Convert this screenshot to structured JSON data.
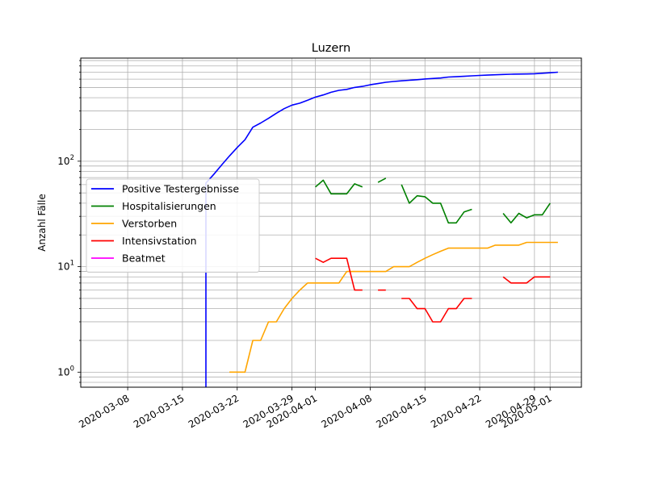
{
  "chart_data": {
    "type": "line",
    "title": "Luzern",
    "xlabel": "",
    "ylabel": "Anzahl Fälle",
    "yscale": "log",
    "ylim": [
      0.72,
      950
    ],
    "xlim": [
      "2020-03-02",
      "2020-05-05"
    ],
    "grid": true,
    "legend_position": "center-left",
    "x_tick_labels": [
      "2020-03-08",
      "2020-03-15",
      "2020-03-22",
      "2020-03-29",
      "2020-04-01",
      "2020-04-08",
      "2020-04-15",
      "2020-04-22",
      "2020-04-29",
      "2020-05-01"
    ],
    "y_tick_labels": [
      {
        "value": 1,
        "label": "10",
        "exp": "0"
      },
      {
        "value": 10,
        "label": "10",
        "exp": "1"
      },
      {
        "value": 100,
        "label": "10",
        "exp": "2"
      }
    ],
    "series": [
      {
        "name": "Positive Testergebnisse",
        "color": "#0000ff",
        "vertical_drop_to_bottom": "2020-03-18",
        "points": [
          [
            "2020-03-18",
            62
          ],
          [
            "2020-03-19",
            75
          ],
          [
            "2020-03-20",
            92
          ],
          [
            "2020-03-21",
            112
          ],
          [
            "2020-03-22",
            135
          ],
          [
            "2020-03-23",
            160
          ],
          [
            "2020-03-24",
            210
          ],
          [
            "2020-03-25",
            230
          ],
          [
            "2020-03-26",
            255
          ],
          [
            "2020-03-27",
            285
          ],
          [
            "2020-03-28",
            315
          ],
          [
            "2020-03-29",
            340
          ],
          [
            "2020-03-30",
            355
          ],
          [
            "2020-03-31",
            378
          ],
          [
            "2020-04-01",
            405
          ],
          [
            "2020-04-02",
            425
          ],
          [
            "2020-04-03",
            450
          ],
          [
            "2020-04-04",
            470
          ],
          [
            "2020-04-05",
            480
          ],
          [
            "2020-04-06",
            500
          ],
          [
            "2020-04-07",
            512
          ],
          [
            "2020-04-08",
            530
          ],
          [
            "2020-04-09",
            545
          ],
          [
            "2020-04-10",
            560
          ],
          [
            "2020-04-11",
            570
          ],
          [
            "2020-04-12",
            578
          ],
          [
            "2020-04-13",
            585
          ],
          [
            "2020-04-14",
            593
          ],
          [
            "2020-04-15",
            602
          ],
          [
            "2020-04-16",
            608
          ],
          [
            "2020-04-17",
            615
          ],
          [
            "2020-04-18",
            628
          ],
          [
            "2020-04-19",
            632
          ],
          [
            "2020-04-20",
            638
          ],
          [
            "2020-04-21",
            645
          ],
          [
            "2020-04-22",
            650
          ],
          [
            "2020-04-23",
            655
          ],
          [
            "2020-04-24",
            660
          ],
          [
            "2020-04-25",
            665
          ],
          [
            "2020-04-26",
            668
          ],
          [
            "2020-04-27",
            670
          ],
          [
            "2020-04-28",
            672
          ],
          [
            "2020-04-29",
            675
          ],
          [
            "2020-04-30",
            682
          ],
          [
            "2020-05-01",
            690
          ],
          [
            "2020-05-02",
            698
          ]
        ]
      },
      {
        "name": "Hospitalisierungen",
        "color": "#008000",
        "segments": [
          [
            [
              "2020-04-01",
              57
            ],
            [
              "2020-04-02",
              66
            ],
            [
              "2020-04-03",
              49
            ],
            [
              "2020-04-04",
              49
            ],
            [
              "2020-04-05",
              49
            ],
            [
              "2020-04-06",
              61
            ],
            [
              "2020-04-07",
              57
            ]
          ],
          [
            [
              "2020-04-09",
              63
            ],
            [
              "2020-04-10",
              69
            ]
          ],
          [
            [
              "2020-04-12",
              60
            ],
            [
              "2020-04-13",
              40
            ],
            [
              "2020-04-14",
              47
            ],
            [
              "2020-04-15",
              46
            ],
            [
              "2020-04-16",
              40
            ],
            [
              "2020-04-17",
              40
            ],
            [
              "2020-04-18",
              26
            ],
            [
              "2020-04-19",
              26
            ],
            [
              "2020-04-20",
              33
            ],
            [
              "2020-04-21",
              35
            ]
          ],
          [
            [
              "2020-04-25",
              32
            ],
            [
              "2020-04-26",
              26
            ],
            [
              "2020-04-27",
              32
            ],
            [
              "2020-04-28",
              29
            ],
            [
              "2020-04-29",
              31
            ],
            [
              "2020-04-30",
              31
            ],
            [
              "2020-05-01",
              40
            ]
          ]
        ]
      },
      {
        "name": "Verstorben",
        "color": "#ffa500",
        "segments": [
          [
            [
              "2020-03-21",
              1
            ],
            [
              "2020-03-22",
              1
            ],
            [
              "2020-03-23",
              1
            ],
            [
              "2020-03-24",
              2
            ],
            [
              "2020-03-25",
              2
            ],
            [
              "2020-03-26",
              3
            ],
            [
              "2020-03-27",
              3
            ],
            [
              "2020-03-28",
              4
            ],
            [
              "2020-03-29",
              5
            ],
            [
              "2020-03-30",
              6
            ],
            [
              "2020-03-31",
              7
            ],
            [
              "2020-04-01",
              7
            ],
            [
              "2020-04-02",
              7
            ],
            [
              "2020-04-03",
              7
            ],
            [
              "2020-04-04",
              7
            ],
            [
              "2020-04-05",
              9
            ],
            [
              "2020-04-06",
              9
            ],
            [
              "2020-04-07",
              9
            ],
            [
              "2020-04-08",
              9
            ],
            [
              "2020-04-09",
              9
            ],
            [
              "2020-04-10",
              9
            ],
            [
              "2020-04-11",
              10
            ],
            [
              "2020-04-12",
              10
            ],
            [
              "2020-04-13",
              10
            ],
            [
              "2020-04-14",
              11
            ],
            [
              "2020-04-15",
              12
            ],
            [
              "2020-04-16",
              13
            ],
            [
              "2020-04-17",
              14
            ],
            [
              "2020-04-18",
              15
            ],
            [
              "2020-04-19",
              15
            ],
            [
              "2020-04-20",
              15
            ],
            [
              "2020-04-21",
              15
            ],
            [
              "2020-04-22",
              15
            ],
            [
              "2020-04-23",
              15
            ],
            [
              "2020-04-24",
              16
            ],
            [
              "2020-04-25",
              16
            ],
            [
              "2020-04-26",
              16
            ],
            [
              "2020-04-27",
              16
            ],
            [
              "2020-04-28",
              17
            ],
            [
              "2020-04-29",
              17
            ],
            [
              "2020-04-30",
              17
            ],
            [
              "2020-05-01",
              17
            ],
            [
              "2020-05-02",
              17
            ]
          ]
        ]
      },
      {
        "name": "Intensivstation",
        "color": "#ff0000",
        "segments": [
          [
            [
              "2020-04-01",
              12
            ],
            [
              "2020-04-02",
              11
            ],
            [
              "2020-04-03",
              12
            ],
            [
              "2020-04-04",
              12
            ],
            [
              "2020-04-05",
              12
            ],
            [
              "2020-04-06",
              6
            ],
            [
              "2020-04-07",
              6
            ]
          ],
          [
            [
              "2020-04-09",
              6
            ],
            [
              "2020-04-10",
              6
            ]
          ],
          [
            [
              "2020-04-12",
              5
            ],
            [
              "2020-04-13",
              5
            ],
            [
              "2020-04-14",
              4
            ],
            [
              "2020-04-15",
              4
            ],
            [
              "2020-04-16",
              3
            ],
            [
              "2020-04-17",
              3
            ],
            [
              "2020-04-18",
              4
            ],
            [
              "2020-04-19",
              4
            ],
            [
              "2020-04-20",
              5
            ],
            [
              "2020-04-21",
              5
            ]
          ],
          [
            [
              "2020-04-25",
              8
            ],
            [
              "2020-04-26",
              7
            ],
            [
              "2020-04-27",
              7
            ],
            [
              "2020-04-28",
              7
            ],
            [
              "2020-04-29",
              8
            ],
            [
              "2020-04-30",
              8
            ],
            [
              "2020-05-01",
              8
            ]
          ]
        ]
      },
      {
        "name": "Beatmet",
        "color": "#ff00ff",
        "segments": []
      }
    ]
  }
}
